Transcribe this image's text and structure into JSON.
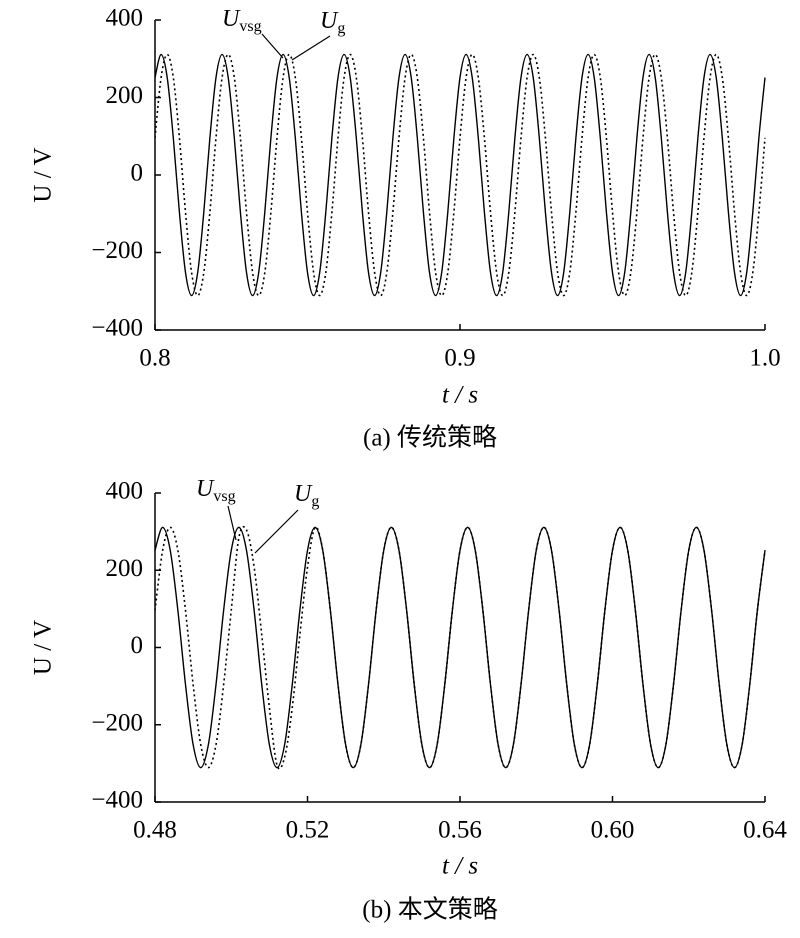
{
  "chart_data": [
    {
      "type": "line",
      "caption": "(a) 传统策略",
      "xlabel": "t / s",
      "ylabel": "U / V",
      "xlim": [
        0.8,
        1.0
      ],
      "xticks": [
        0.8,
        0.9,
        {
          "value": 1,
          "label": "1.0"
        }
      ],
      "ylim": [
        -400,
        400
      ],
      "yticks": [
        {
          "value": -400,
          "label": "−400"
        },
        {
          "value": -200,
          "label": "−200"
        },
        0,
        200,
        400
      ],
      "x": [
        0.8,
        0.802,
        0.804,
        0.806,
        0.808,
        0.81,
        0.812,
        0.814,
        0.816,
        0.818,
        0.82,
        0.822,
        0.824,
        0.826,
        0.828,
        0.83,
        0.832,
        0.834,
        0.836,
        0.838,
        0.84,
        0.842,
        0.844,
        0.846,
        0.848,
        0.85,
        0.852,
        0.854,
        0.856,
        0.858,
        0.86,
        0.862,
        0.864,
        0.866,
        0.868,
        0.87,
        0.872,
        0.874,
        0.876,
        0.878,
        0.88,
        0.882,
        0.884,
        0.886,
        0.888,
        0.89,
        0.892,
        0.894,
        0.896,
        0.898,
        0.9,
        0.902,
        0.904,
        0.906,
        0.908,
        0.91,
        0.912,
        0.914,
        0.916,
        0.918,
        0.92,
        0.922,
        0.924,
        0.926,
        0.928,
        0.93,
        0.932,
        0.934,
        0.936,
        0.938,
        0.94,
        0.942,
        0.944,
        0.946,
        0.948,
        0.95,
        0.952,
        0.954,
        0.956,
        0.958,
        0.96,
        0.962,
        0.964,
        0.966,
        0.968,
        0.97,
        0.972,
        0.974,
        0.976,
        0.978,
        0.98,
        0.982,
        0.984,
        0.986,
        0.988,
        0.99,
        0.992,
        0.994,
        0.996,
        0.998,
        1
      ],
      "series": [
        {
          "name": "U",
          "subscript": "vsg",
          "color": "#000000",
          "style": "solid",
          "values": [
            251.6,
            311,
            251.6,
            96.1,
            -96.1,
            -251.6,
            -311,
            -251.6,
            -96.1,
            96.1,
            251.6,
            311,
            251.6,
            96.1,
            -96.1,
            -251.6,
            -311,
            -251.6,
            -96.1,
            96.1,
            251.6,
            311,
            251.6,
            96.1,
            -96.1,
            -251.6,
            -311,
            -251.6,
            -96.1,
            96.1,
            251.6,
            311,
            251.6,
            96.1,
            -96.1,
            -251.6,
            -311,
            -251.6,
            -96.1,
            96.1,
            251.6,
            311,
            251.6,
            96.1,
            -96.1,
            -251.6,
            -311,
            -251.6,
            -96.1,
            96.1,
            251.6,
            311,
            251.6,
            96.1,
            -96.1,
            -251.6,
            -311,
            -251.6,
            -96.1,
            96.1,
            251.6,
            311,
            251.6,
            96.1,
            -96.1,
            -251.6,
            -311,
            -251.6,
            -96.1,
            96.1,
            251.6,
            311,
            251.6,
            96.1,
            -96.1,
            -251.6,
            -311,
            -251.6,
            -96.1,
            96.1,
            251.6,
            311,
            251.6,
            96.1,
            -96.1,
            -251.6,
            -311,
            -251.6,
            -96.1,
            96.1,
            251.6,
            311,
            251.6,
            96.1,
            -96.1,
            -251.6,
            -311,
            -251.6,
            -96.1,
            96.1,
            251.6
          ]
        },
        {
          "name": "U",
          "subscript": "g",
          "color": "#000000",
          "style": "dotted",
          "values": [
            96.1,
            251.6,
            311,
            251.6,
            96.1,
            -96.1,
            -251.6,
            -311,
            -251.6,
            -96.1,
            96.1,
            251.6,
            311,
            251.6,
            96.1,
            -96.1,
            -251.6,
            -311,
            -251.6,
            -96.1,
            96.1,
            251.6,
            311,
            251.6,
            96.1,
            -96.1,
            -251.6,
            -311,
            -251.6,
            -96.1,
            96.1,
            251.6,
            311,
            251.6,
            96.1,
            -96.1,
            -251.6,
            -311,
            -251.6,
            -96.1,
            96.1,
            251.6,
            311,
            251.6,
            96.1,
            -96.1,
            -251.6,
            -311,
            -251.6,
            -96.1,
            96.1,
            251.6,
            311,
            251.6,
            96.1,
            -96.1,
            -251.6,
            -311,
            -251.6,
            -96.1,
            96.1,
            251.6,
            311,
            251.6,
            96.1,
            -96.1,
            -251.6,
            -311,
            -251.6,
            -96.1,
            96.1,
            251.6,
            311,
            251.6,
            96.1,
            -96.1,
            -251.6,
            -311,
            -251.6,
            -96.1,
            96.1,
            251.6,
            311,
            251.6,
            96.1,
            -96.1,
            -251.6,
            -311,
            -251.6,
            -96.1,
            96.1,
            251.6,
            311,
            251.6,
            96.1,
            -96.1,
            -251.6,
            -311,
            -251.6,
            -96.1,
            96.1
          ]
        }
      ]
    },
    {
      "type": "line",
      "caption": "(b) 本文策略",
      "xlabel": "t / s",
      "ylabel": "U / V",
      "xlim": [
        0.48,
        0.64
      ],
      "xticks": [
        0.48,
        0.52,
        0.56,
        {
          "value": 0.6,
          "label": "0.60"
        },
        0.64
      ],
      "ylim": [
        -400,
        400
      ],
      "yticks": [
        {
          "value": -400,
          "label": "−400"
        },
        {
          "value": -200,
          "label": "−200"
        },
        0,
        200,
        400
      ],
      "x": [
        0.48,
        0.482,
        0.484,
        0.486,
        0.488,
        0.49,
        0.492,
        0.494,
        0.496,
        0.498,
        0.5,
        0.502,
        0.504,
        0.506,
        0.508,
        0.51,
        0.512,
        0.514,
        0.516,
        0.518,
        0.52,
        0.522,
        0.524,
        0.526,
        0.528,
        0.53,
        0.532,
        0.534,
        0.536,
        0.538,
        0.54,
        0.542,
        0.544,
        0.546,
        0.548,
        0.55,
        0.552,
        0.554,
        0.556,
        0.558,
        0.56,
        0.562,
        0.564,
        0.566,
        0.568,
        0.57,
        0.572,
        0.574,
        0.576,
        0.578,
        0.58,
        0.582,
        0.584,
        0.586,
        0.588,
        0.59,
        0.592,
        0.594,
        0.596,
        0.598,
        0.6,
        0.602,
        0.604,
        0.606,
        0.608,
        0.61,
        0.612,
        0.614,
        0.616,
        0.618,
        0.62,
        0.622,
        0.624,
        0.626,
        0.628,
        0.63,
        0.632,
        0.634,
        0.636,
        0.638,
        0.64
      ],
      "series": [
        {
          "name": "U",
          "subscript": "vsg",
          "color": "#000000",
          "style": "solid",
          "values": [
            251.6,
            311,
            251.6,
            96.1,
            -96.1,
            -251.6,
            -311,
            -251.6,
            -96.1,
            96.1,
            251.6,
            311,
            251.6,
            96.1,
            -96.1,
            -251.6,
            -311,
            -251.6,
            -96.1,
            96.1,
            251.6,
            311,
            251.6,
            96.1,
            -96.1,
            -251.6,
            -311,
            -251.6,
            -96.1,
            96.1,
            251.6,
            311,
            251.6,
            96.1,
            -96.1,
            -251.6,
            -311,
            -251.6,
            -96.1,
            96.1,
            251.6,
            311,
            251.6,
            96.1,
            -96.1,
            -251.6,
            -311,
            -251.6,
            -96.1,
            96.1,
            251.6,
            311,
            251.6,
            96.1,
            -96.1,
            -251.6,
            -311,
            -251.6,
            -96.1,
            96.1,
            251.6,
            311,
            251.6,
            96.1,
            -96.1,
            -251.6,
            -311,
            -251.6,
            -96.1,
            96.1,
            251.6,
            311,
            251.6,
            96.1,
            -96.1,
            -251.6,
            -311,
            -251.6,
            -96.1,
            96.1,
            251.6
          ]
        },
        {
          "name": "U",
          "subscript": "g",
          "color": "#000000",
          "style": "dotted",
          "values": [
            96.1,
            251.6,
            311,
            251.6,
            96.1,
            -96.1,
            -251.6,
            -311,
            -251.6,
            -96.1,
            96.1,
            284.1,
            304.2,
            208.1,
            32.5,
            -155.5,
            -304.2,
            -284.1,
            -155.5,
            32.5,
            208.1,
            311,
            251.6,
            96.1,
            -96.1,
            -251.6,
            -311,
            -251.6,
            -96.1,
            96.1,
            251.6,
            311,
            251.6,
            96.1,
            -96.1,
            -251.6,
            -311,
            -251.6,
            -96.1,
            96.1,
            251.6,
            311,
            251.6,
            96.1,
            -96.1,
            -251.6,
            -311,
            -251.6,
            -96.1,
            96.1,
            251.6,
            311,
            251.6,
            96.1,
            -96.1,
            -251.6,
            -311,
            -251.6,
            -96.1,
            96.1,
            251.6,
            311,
            251.6,
            96.1,
            -96.1,
            -251.6,
            -311,
            -251.6,
            -96.1,
            96.1,
            251.6,
            311,
            251.6,
            96.1,
            -96.1,
            -251.6,
            -311,
            -251.6,
            -96.1,
            96.1,
            251.6
          ]
        }
      ]
    }
  ]
}
